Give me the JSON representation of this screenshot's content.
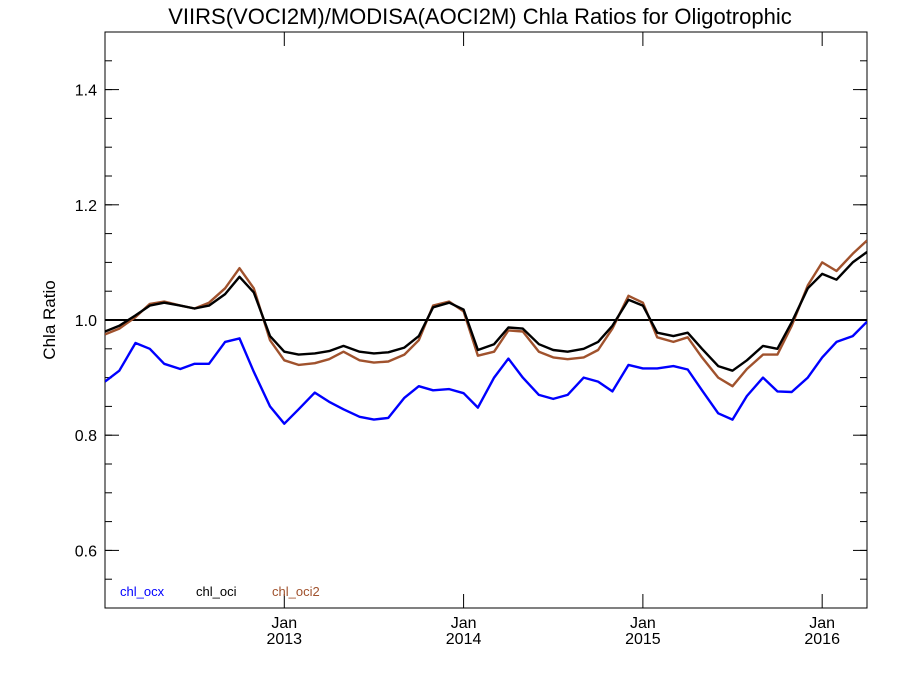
{
  "chart_data": {
    "type": "line",
    "title": "VIIRS(VOCI2M)/MODISA(AOCI2M)  Chla Ratios for Oligotrophic",
    "xlabel": "",
    "ylabel": "Chla Ratio",
    "ylim": [
      0.5,
      1.5
    ],
    "y_ticks": [
      0.6,
      0.8,
      1.0,
      1.2,
      1.4
    ],
    "y_tick_labels": [
      "0.6",
      "0.8",
      "1.0",
      "1.2",
      "1.4"
    ],
    "xlim": [
      2012.0,
      2016.25
    ],
    "x_ticks": [
      {
        "month": "Jan",
        "year": "2013",
        "x": 2013.0
      },
      {
        "month": "Jan",
        "year": "2014",
        "x": 2014.0
      },
      {
        "month": "Jan",
        "year": "2015",
        "x": 2015.0
      },
      {
        "month": "Jan",
        "year": "2016",
        "x": 2016.0
      }
    ],
    "reference_line": 1.0,
    "x": [
      2012.0,
      2012.08,
      2012.17,
      2012.25,
      2012.33,
      2012.42,
      2012.5,
      2012.58,
      2012.67,
      2012.75,
      2012.83,
      2012.92,
      2013.0,
      2013.08,
      2013.17,
      2013.25,
      2013.33,
      2013.42,
      2013.5,
      2013.58,
      2013.67,
      2013.75,
      2013.83,
      2013.92,
      2014.0,
      2014.08,
      2014.17,
      2014.25,
      2014.33,
      2014.42,
      2014.5,
      2014.58,
      2014.67,
      2014.75,
      2014.83,
      2014.92,
      2015.0,
      2015.08,
      2015.17,
      2015.25,
      2015.33,
      2015.42,
      2015.5,
      2015.58,
      2015.67,
      2015.75,
      2015.83,
      2015.92,
      2016.0,
      2016.08,
      2016.17,
      2016.25
    ],
    "series": [
      {
        "name": "chl_ocx",
        "color": "#0000ff",
        "values": [
          0.893,
          0.912,
          0.96,
          0.95,
          0.924,
          0.915,
          0.924,
          0.924,
          0.962,
          0.968,
          0.91,
          0.85,
          0.82,
          0.845,
          0.874,
          0.858,
          0.845,
          0.832,
          0.827,
          0.83,
          0.865,
          0.885,
          0.878,
          0.88,
          0.873,
          0.848,
          0.9,
          0.933,
          0.9,
          0.87,
          0.863,
          0.87,
          0.9,
          0.893,
          0.876,
          0.922,
          0.916,
          0.916,
          0.92,
          0.914,
          0.878,
          0.838,
          0.827,
          0.868,
          0.9,
          0.876,
          0.875,
          0.9,
          0.935,
          0.962,
          0.972,
          0.997
        ]
      },
      {
        "name": "chl_oci",
        "color": "#000000",
        "values": [
          0.98,
          0.99,
          1.008,
          1.025,
          1.03,
          1.025,
          1.02,
          1.025,
          1.045,
          1.075,
          1.048,
          0.972,
          0.945,
          0.94,
          0.942,
          0.946,
          0.955,
          0.945,
          0.942,
          0.944,
          0.952,
          0.972,
          1.022,
          1.03,
          1.018,
          0.948,
          0.958,
          0.987,
          0.985,
          0.958,
          0.948,
          0.945,
          0.95,
          0.962,
          0.99,
          1.035,
          1.025,
          0.978,
          0.972,
          0.978,
          0.95,
          0.92,
          0.912,
          0.93,
          0.955,
          0.95,
          0.996,
          1.055,
          1.08,
          1.07,
          1.1,
          1.118
        ]
      },
      {
        "name": "chl_oci2",
        "color": "#a0522d",
        "values": [
          0.975,
          0.985,
          1.005,
          1.028,
          1.032,
          1.025,
          1.02,
          1.03,
          1.055,
          1.09,
          1.055,
          0.965,
          0.93,
          0.922,
          0.925,
          0.932,
          0.945,
          0.93,
          0.926,
          0.928,
          0.94,
          0.965,
          1.025,
          1.032,
          1.015,
          0.938,
          0.945,
          0.982,
          0.98,
          0.945,
          0.935,
          0.932,
          0.935,
          0.948,
          0.985,
          1.042,
          1.03,
          0.97,
          0.962,
          0.97,
          0.935,
          0.9,
          0.885,
          0.915,
          0.94,
          0.94,
          0.99,
          1.06,
          1.1,
          1.085,
          1.115,
          1.138
        ]
      }
    ],
    "legend": {
      "placement": "bottom-left",
      "entries": [
        "chl_ocx",
        "chl_oci",
        "chl_oci2"
      ]
    },
    "grid": false
  }
}
